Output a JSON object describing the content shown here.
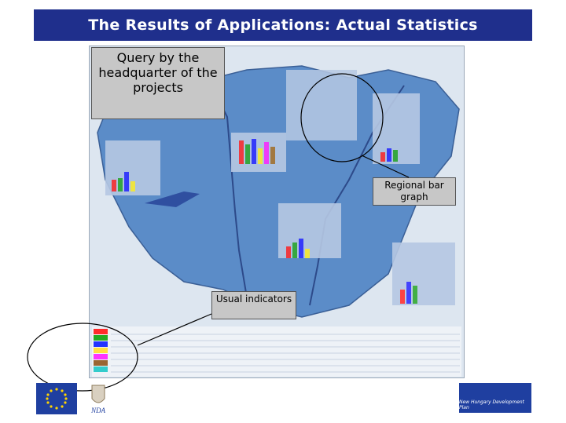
{
  "title": "The Results of Applications: Actual Statistics",
  "callouts": {
    "query": "Query by the headquarter of the projects",
    "regional": "Regional bar graph",
    "usual": "Usual indicators"
  },
  "footer": {
    "nda_label": "NDA",
    "nhdp_label": "New Hungary Development Plan"
  },
  "colors": {
    "title_bg": "#1f2f8c",
    "map_bg": "#dde6f0",
    "country_fill": "#5b8cc8",
    "callout_bg": "#c7c7c7",
    "annotation_line": "#000000"
  },
  "icons": {
    "eu_flag": "eu-flag-icon",
    "nda": "nda-crest-icon",
    "nhdp": "nhdp-logo-icon"
  }
}
